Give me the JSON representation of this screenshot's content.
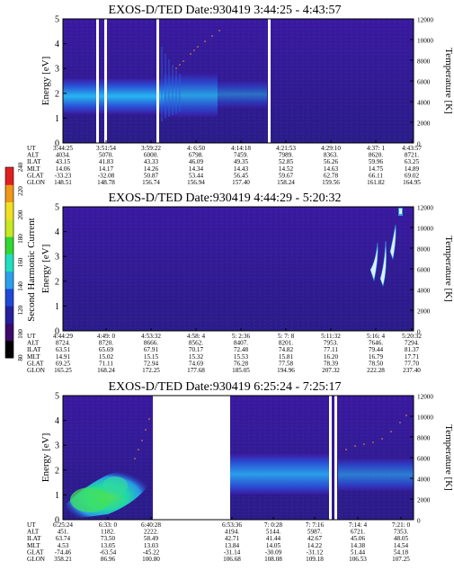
{
  "chart_data": {
    "type": "heatmap",
    "colorbar": {
      "label": "Second Harmonic Current",
      "ticks": [
        "80",
        "100",
        "120",
        "140",
        "160",
        "180",
        "200",
        "220",
        "240"
      ],
      "colors": [
        "#000000",
        "#3c0a6a",
        "#26209c",
        "#1f48d6",
        "#2aa0ec",
        "#1ee0c0",
        "#30d830",
        "#c8e820",
        "#f0e020",
        "#f09818",
        "#e02020"
      ]
    },
    "panels": [
      {
        "title": "EXOS-D/TED   Date:930419  3:44:25 - 4:43:57",
        "ylabel": "Energy [eV]",
        "yticks": [
          "0",
          "1",
          "2",
          "3",
          "4",
          "5"
        ],
        "ylim": [
          0,
          5
        ],
        "rlabel": "Temperature [K]",
        "rticks": [
          "0",
          "2000",
          "4000",
          "6000",
          "8000",
          "10000",
          "12000"
        ],
        "rlim": [
          0,
          12000
        ],
        "row_labels": [
          "UT",
          "ALT",
          "ILAT",
          "MLT",
          "GLAT",
          "GLON"
        ],
        "columns": [
          [
            "3:44:25",
            "4034.",
            "43.15",
            "14.06",
            "-33.23",
            "148.51"
          ],
          [
            "3:51:54",
            "5070.",
            "41.83",
            "14.17",
            "-32.08",
            "148.78"
          ],
          [
            "3:59:22",
            "6000.",
            "43.33",
            "14.26",
            "50.87",
            "156.74"
          ],
          [
            "4: 6:50",
            "6798.",
            "46.09",
            "14.34",
            "53.44",
            "156.94"
          ],
          [
            "4:14:18",
            "7459.",
            "49.35",
            "14.43",
            "56.45",
            "157.40"
          ],
          [
            "4:21:53",
            "7989.",
            "52.85",
            "14.52",
            "59.67",
            "158.24"
          ],
          [
            "4:29:10",
            "8363.",
            "56.26",
            "14.63",
            "62.78",
            "159.56"
          ],
          [
            "4:37: 1",
            "8620.",
            "59.96",
            "14.75",
            "66.11",
            "161.82"
          ],
          [
            "4:43:57",
            "8721.",
            "63.25",
            "14.89",
            "69.02",
            "164.95"
          ]
        ]
      },
      {
        "title": "EXOS-D/TED   Date:930419  4:44:29 - 5:20:32",
        "ylabel": "Energy [eV]",
        "yticks": [
          "0",
          "1",
          "2",
          "3",
          "4",
          "5"
        ],
        "ylim": [
          0,
          5
        ],
        "rlabel": "Temperature [K]",
        "rticks": [
          "0",
          "2000",
          "4000",
          "6000",
          "8000",
          "10000",
          "12000"
        ],
        "rlim": [
          0,
          12000
        ],
        "row_labels": [
          "UT",
          "ALT",
          "ILAT",
          "MLT",
          "GLAT",
          "GLON"
        ],
        "columns": [
          [
            "4:44:29",
            "8724.",
            "63.51",
            "14.91",
            "69.25",
            "165.25"
          ],
          [
            "4:49: 0",
            "8720.",
            "65.69",
            "15.02",
            "71.11",
            "168.24"
          ],
          [
            "4:53:32",
            "8666.",
            "67.91",
            "15.15",
            "72.94",
            "172.25"
          ],
          [
            "4:58: 4",
            "8562.",
            "70.17",
            "15.32",
            "74.69",
            "177.68"
          ],
          [
            "5: 2:36",
            "8407.",
            "72.48",
            "15.53",
            "76.28",
            "185.05"
          ],
          [
            "5: 7: 8",
            "8201.",
            "74.82",
            "15.81",
            "77.58",
            "194.96"
          ],
          [
            "5:11:32",
            "7953.",
            "77.11",
            "16.20",
            "78.39",
            "207.32"
          ],
          [
            "5:16: 4",
            "7646.",
            "79.44",
            "16.79",
            "78.50",
            "222.28"
          ],
          [
            "5:20:32",
            "7294.",
            "81.37",
            "17.71",
            "77.70",
            "237.40"
          ]
        ]
      },
      {
        "title": "EXOS-D/TED   Date:930419  6:25:24 - 7:25:17",
        "ylabel": "Energy [eV]",
        "yticks": [
          "0",
          "1",
          "2",
          "3",
          "4",
          "5"
        ],
        "ylim": [
          0,
          5
        ],
        "rlabel": "Temperature [K]",
        "rticks": [
          "0",
          "2000",
          "4000",
          "6000",
          "8000",
          "10000",
          "12000"
        ],
        "rlim": [
          0,
          12000
        ],
        "row_labels": [
          "UT",
          "ALT",
          "ILAT",
          "MLT",
          "GLAT",
          "GLON"
        ],
        "columns": [
          [
            "6:25:24",
            "451.",
            "63.74",
            "4.53",
            "-74.46",
            "358.21"
          ],
          [
            "6:33: 0",
            "1182.",
            "73.50",
            "13.05",
            "-63.54",
            "86.96"
          ],
          [
            "6:40:28",
            "2222.",
            "58.49",
            "13.03",
            "-45.22",
            "100.80"
          ],
          [
            "6:53:36",
            "4194.",
            "42.71",
            "13.84",
            "-31.14",
            "106.68"
          ],
          [
            "7: 0:28",
            "5144.",
            "41.44",
            "14.05",
            "-30.09",
            "108.08"
          ],
          [
            "7: 7:16",
            "5987.",
            "42.67",
            "14.22",
            "-31.12",
            "109.18"
          ],
          [
            "7:14: 4",
            "6721.",
            "45.06",
            "14.38",
            "51.44",
            "106.53"
          ],
          [
            "7:21: 0",
            "7353.",
            "48.05",
            "14.54",
            "54.18",
            "107.25"
          ]
        ]
      }
    ]
  }
}
